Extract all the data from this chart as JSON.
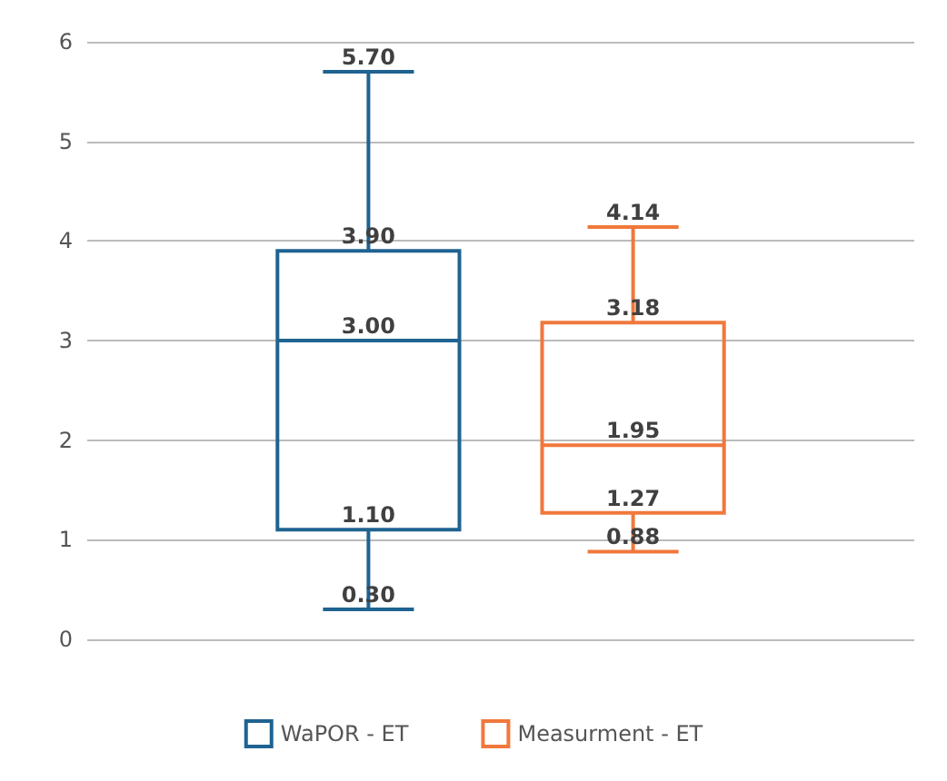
{
  "chart_data": {
    "type": "box",
    "categories": [
      null
    ],
    "series": [
      {
        "name": "WaPOR - ET",
        "color": "#1f6391",
        "boxes": [
          {
            "low": 0.3,
            "q1": 1.1,
            "median": 3.0,
            "q3": 3.9,
            "high": 5.7
          }
        ],
        "value_labels": [
          [
            "0.30",
            "1.10",
            "3.00",
            "3.90",
            "5.70"
          ]
        ]
      },
      {
        "name": "Measurment - ET",
        "color": "#f0783c",
        "boxes": [
          {
            "low": 0.88,
            "q1": 1.27,
            "median": 1.95,
            "q3": 3.18,
            "high": 4.14
          }
        ],
        "value_labels": [
          [
            "0.88",
            "1.27",
            "1.95",
            "3.18",
            "4.14"
          ]
        ]
      }
    ],
    "ylim": [
      0,
      6
    ],
    "yticks": [
      0,
      1,
      2,
      3,
      4,
      5,
      6
    ],
    "grid": "y",
    "legend": "bottom"
  }
}
